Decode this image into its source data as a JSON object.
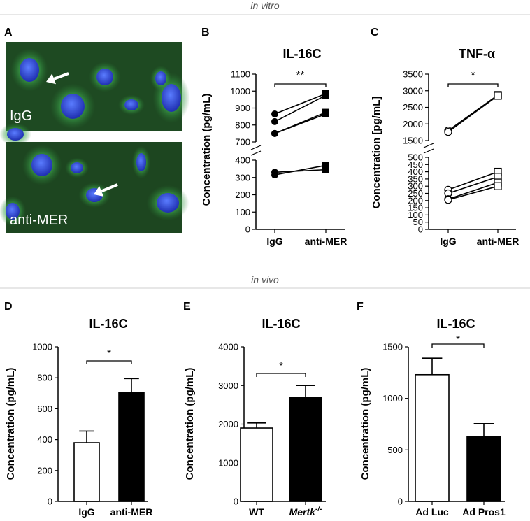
{
  "sections": {
    "top": "in vitro",
    "bottom": "in vivo"
  },
  "panel_a": {
    "letter": "A",
    "images": [
      {
        "label": "IgG",
        "cells": [
          [
            42,
            100,
            14,
            17
          ],
          [
            104,
            152,
            17,
            18
          ],
          [
            245,
            140,
            14,
            20
          ],
          [
            22,
            192,
            12,
            9
          ],
          [
            150,
            110,
            12,
            12
          ],
          [
            188,
            150,
            10,
            8
          ],
          [
            230,
            112,
            8,
            10
          ]
        ],
        "arrow": {
          "from": [
            98,
            105
          ],
          "to": [
            66,
            117
          ]
        }
      },
      {
        "label": "anti-MER",
        "cells": [
          [
            60,
            236,
            15,
            16
          ],
          [
            135,
            279,
            12,
            10
          ],
          [
            202,
            232,
            7,
            13
          ],
          [
            240,
            290,
            16,
            14
          ],
          [
            18,
            302,
            10,
            12
          ],
          [
            110,
            240,
            9,
            8
          ]
        ],
        "arrow": {
          "from": [
            168,
            264
          ],
          "to": [
            134,
            278
          ]
        }
      }
    ]
  },
  "chart_data": [
    {
      "id": "B",
      "type": "line",
      "title": "IL-16C",
      "ylabel": "Concentration (pg/mL)",
      "categories": [
        "IgG",
        "anti-MER"
      ],
      "marker": "filled",
      "segments": [
        {
          "ylim": [
            700,
            1100
          ],
          "ticks": [
            700,
            800,
            900,
            1000,
            1100
          ]
        },
        {
          "ylim": [
            0,
            400
          ],
          "ticks": [
            0,
            100,
            200,
            300,
            400
          ]
        }
      ],
      "series": [
        {
          "values": [
            865,
            985
          ]
        },
        {
          "values": [
            820,
            975
          ]
        },
        {
          "values": [
            750,
            875
          ]
        },
        {
          "values": [
            750,
            865
          ]
        },
        {
          "values": [
            330,
            345
          ]
        },
        {
          "values": [
            315,
            370
          ]
        }
      ],
      "significance": "**"
    },
    {
      "id": "C",
      "type": "line",
      "title": "TNF-α",
      "ylabel": "Concentration [pg/mL]",
      "categories": [
        "IgG",
        "anti-MER"
      ],
      "marker": "open",
      "segments": [
        {
          "ylim": [
            1500,
            3500
          ],
          "ticks": [
            1500,
            2000,
            2500,
            3000,
            3500
          ]
        },
        {
          "ylim": [
            0,
            500
          ],
          "ticks": [
            0,
            50,
            100,
            150,
            200,
            250,
            300,
            350,
            400,
            450,
            500
          ]
        }
      ],
      "series": [
        {
          "values": [
            1800,
            2870
          ]
        },
        {
          "values": [
            1760,
            2850
          ]
        },
        {
          "values": [
            275,
            400
          ]
        },
        {
          "values": [
            250,
            365
          ]
        },
        {
          "values": [
            210,
            325
          ]
        },
        {
          "values": [
            205,
            300
          ]
        }
      ],
      "significance": "*"
    },
    {
      "id": "D",
      "type": "bar",
      "title": "IL-16C",
      "ylabel": "Concentration (pg/mL)",
      "categories": [
        "IgG",
        "anti-MER"
      ],
      "values": [
        380,
        705
      ],
      "errors": [
        75,
        90
      ],
      "fill": [
        "open",
        "black"
      ],
      "ylim": [
        0,
        1000
      ],
      "ticks": [
        0,
        200,
        400,
        600,
        800,
        1000
      ],
      "significance": "*"
    },
    {
      "id": "E",
      "type": "bar",
      "title": "IL-16C",
      "ylabel": "Concentration (pg/mL)",
      "categories": [
        "WT",
        "Mertk-/-"
      ],
      "values": [
        1900,
        2700
      ],
      "errors": [
        130,
        300
      ],
      "fill": [
        "open",
        "black"
      ],
      "ylim": [
        0,
        4000
      ],
      "ticks": [
        0,
        1000,
        2000,
        3000,
        4000
      ],
      "significance": "*"
    },
    {
      "id": "F",
      "type": "bar",
      "title": "IL-16C",
      "ylabel": "Concentration (pg/mL)",
      "categories": [
        "Ad Luc",
        "Ad Pros1"
      ],
      "values": [
        1230,
        630
      ],
      "errors": [
        160,
        125
      ],
      "fill": [
        "open",
        "black"
      ],
      "ylim": [
        0,
        1500
      ],
      "ticks": [
        0,
        500,
        1000,
        1500
      ],
      "significance": "*"
    }
  ]
}
